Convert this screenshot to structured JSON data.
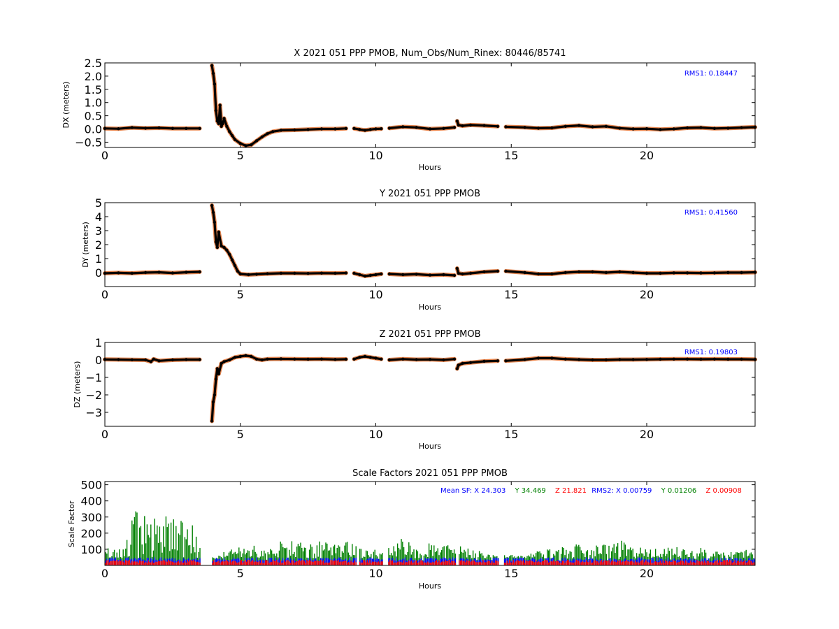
{
  "chart_data": [
    {
      "type": "scatter",
      "title": "X 2021 051 PPP  PMOB, Num_Obs/Num_Rinex: 80446/85741",
      "xlabel": "Hours",
      "ylabel": "DX (meters)",
      "xlim": [
        0,
        24
      ],
      "ylim": [
        -0.7,
        2.5
      ],
      "xticks": [
        0,
        5,
        10,
        15,
        20
      ],
      "yticks": [
        -0.5,
        0.0,
        0.5,
        1.0,
        1.5,
        2.0,
        2.5
      ],
      "ytick_labels": [
        "−0.5",
        "0.0",
        "0.5",
        "1.0",
        "1.5",
        "2.0",
        "2.5"
      ],
      "annotation": "RMS1:  0.18447",
      "annotation_color": "#0000ff",
      "point_color": "#000000",
      "error_color": "#e07030",
      "series": [
        {
          "x": [
            0,
            0.5,
            1.0,
            1.5,
            2.0,
            2.5,
            3.0,
            3.5
          ],
          "y": [
            0.02,
            0.01,
            0.05,
            0.03,
            0.04,
            0.02,
            0.02,
            0.02
          ]
        },
        {
          "x": [
            3.95,
            4.0,
            4.05,
            4.1,
            4.15,
            4.2,
            4.25,
            4.3,
            4.35,
            4.4,
            4.5,
            4.6,
            4.7,
            4.8,
            5.0,
            5.2,
            5.4,
            5.6,
            5.8,
            6.0,
            6.2,
            6.5,
            7.0,
            7.5,
            8.0,
            8.5,
            8.9
          ],
          "y": [
            2.4,
            2.1,
            1.7,
            0.7,
            0.3,
            0.2,
            0.9,
            0.1,
            0.2,
            0.4,
            0.1,
            -0.1,
            -0.25,
            -0.4,
            -0.55,
            -0.63,
            -0.6,
            -0.45,
            -0.3,
            -0.18,
            -0.1,
            -0.05,
            -0.04,
            -0.02,
            0.0,
            0.0,
            0.02
          ]
        },
        {
          "x": [
            9.2,
            9.4,
            9.6,
            9.8,
            10.0,
            10.2
          ],
          "y": [
            0.02,
            -0.02,
            -0.05,
            -0.02,
            0.0,
            0.01
          ]
        },
        {
          "x": [
            10.5,
            11.0,
            11.5,
            12.0,
            12.5,
            12.9
          ],
          "y": [
            0.03,
            0.08,
            0.06,
            0.0,
            0.02,
            0.06
          ]
        },
        {
          "x": [
            13.0,
            13.05,
            13.2,
            13.5,
            14.0,
            14.5
          ],
          "y": [
            0.3,
            0.15,
            0.12,
            0.15,
            0.13,
            0.1
          ]
        },
        {
          "x": [
            14.8,
            15.5,
            16.0,
            16.5,
            17.0,
            17.5,
            18.0,
            18.5,
            19.0,
            19.5,
            20.0,
            20.5,
            21.0,
            21.5,
            22.0,
            22.5,
            23.0,
            23.5,
            24.0
          ],
          "y": [
            0.08,
            0.06,
            0.03,
            0.04,
            0.1,
            0.13,
            0.08,
            0.1,
            0.03,
            0.0,
            0.01,
            -0.02,
            0.0,
            0.04,
            0.05,
            0.02,
            0.03,
            0.05,
            0.07
          ]
        }
      ]
    },
    {
      "type": "scatter",
      "title": "Y 2021 051 PPP  PMOB",
      "xlabel": "Hours",
      "ylabel": "DY (meters)",
      "xlim": [
        0,
        24
      ],
      "ylim": [
        -1.0,
        5.0
      ],
      "xticks": [
        0,
        5,
        10,
        15,
        20
      ],
      "yticks": [
        0,
        1,
        2,
        3,
        4,
        5
      ],
      "ytick_labels": [
        "0",
        "1",
        "2",
        "3",
        "4",
        "5"
      ],
      "annotation": "RMS1:  0.41560",
      "annotation_color": "#0000ff",
      "point_color": "#000000",
      "error_color": "#e07030",
      "series": [
        {
          "x": [
            0,
            0.5,
            1.0,
            1.5,
            2.0,
            2.5,
            3.0,
            3.5
          ],
          "y": [
            -0.05,
            -0.02,
            -0.05,
            0.0,
            0.02,
            -0.03,
            0.02,
            0.05
          ]
        },
        {
          "x": [
            3.95,
            4.0,
            4.05,
            4.1,
            4.15,
            4.2,
            4.3,
            4.4,
            4.5,
            4.6,
            4.7,
            4.8,
            4.9,
            5.0,
            5.3,
            5.6,
            6.0,
            6.5,
            7.0,
            7.5,
            8.0,
            8.5,
            8.9
          ],
          "y": [
            4.8,
            4.3,
            3.6,
            2.2,
            1.8,
            2.9,
            1.9,
            1.8,
            1.6,
            1.3,
            0.9,
            0.5,
            0.1,
            -0.1,
            -0.15,
            -0.12,
            -0.08,
            -0.05,
            -0.05,
            -0.06,
            -0.04,
            -0.05,
            -0.03
          ]
        },
        {
          "x": [
            9.2,
            9.4,
            9.6,
            9.8,
            10.0,
            10.2
          ],
          "y": [
            -0.05,
            -0.15,
            -0.25,
            -0.2,
            -0.15,
            -0.1
          ]
        },
        {
          "x": [
            10.5,
            11.0,
            11.5,
            12.0,
            12.5,
            12.9
          ],
          "y": [
            -0.1,
            -0.15,
            -0.12,
            -0.18,
            -0.15,
            -0.2
          ]
        },
        {
          "x": [
            13.0,
            13.05,
            13.2,
            13.5,
            14.0,
            14.5
          ],
          "y": [
            0.3,
            -0.05,
            -0.1,
            -0.05,
            0.05,
            0.1
          ]
        },
        {
          "x": [
            14.8,
            15.5,
            16.0,
            16.5,
            17.0,
            17.5,
            18.0,
            18.5,
            19.0,
            19.5,
            20.0,
            20.5,
            21.0,
            21.5,
            22.0,
            22.5,
            23.0,
            23.5,
            24.0
          ],
          "y": [
            0.1,
            0.0,
            -0.1,
            -0.1,
            0.0,
            0.05,
            0.05,
            0.0,
            0.05,
            0.0,
            -0.05,
            -0.05,
            -0.02,
            -0.02,
            -0.03,
            -0.02,
            0.0,
            0.0,
            0.02
          ]
        }
      ]
    },
    {
      "type": "scatter",
      "title": "Z 2021 051 PPP  PMOB",
      "xlabel": "Hours",
      "ylabel": "DZ (meters)",
      "xlim": [
        0,
        24
      ],
      "ylim": [
        -3.8,
        1.0
      ],
      "xticks": [
        0,
        5,
        10,
        15,
        20
      ],
      "yticks": [
        -3,
        -2,
        -1,
        0,
        1
      ],
      "ytick_labels": [
        "−3",
        "−2",
        "−1",
        "0",
        "1"
      ],
      "annotation": "RMS1:  0.19803",
      "annotation_color": "#0000ff",
      "point_color": "#000000",
      "error_color": "#e07030",
      "series": [
        {
          "x": [
            0,
            0.5,
            1.0,
            1.5,
            1.7,
            1.8,
            2.0,
            2.5,
            3.0,
            3.5
          ],
          "y": [
            0.03,
            0.02,
            0.01,
            0.0,
            -0.1,
            0.05,
            -0.05,
            0.0,
            0.02,
            0.02
          ]
        },
        {
          "x": [
            3.95,
            4.0,
            4.05,
            4.1,
            4.15,
            4.2,
            4.3,
            4.4,
            4.6,
            4.8,
            5.0,
            5.2,
            5.4,
            5.6,
            5.8,
            6.0,
            6.5,
            7.0,
            7.5,
            8.0,
            8.5,
            8.9
          ],
          "y": [
            -3.5,
            -2.4,
            -2.0,
            -1.1,
            -0.5,
            -0.8,
            -0.2,
            -0.1,
            0.0,
            0.15,
            0.2,
            0.25,
            0.2,
            0.05,
            0.0,
            0.05,
            0.06,
            0.05,
            0.04,
            0.05,
            0.03,
            0.04
          ]
        },
        {
          "x": [
            9.2,
            9.4,
            9.6,
            9.8,
            10.0,
            10.2
          ],
          "y": [
            0.05,
            0.15,
            0.2,
            0.15,
            0.1,
            0.05
          ]
        },
        {
          "x": [
            10.5,
            11.0,
            11.5,
            12.0,
            12.5,
            12.9
          ],
          "y": [
            0.0,
            0.05,
            0.02,
            0.03,
            0.0,
            0.05
          ]
        },
        {
          "x": [
            13.0,
            13.05,
            13.2,
            13.5,
            14.0,
            14.5
          ],
          "y": [
            -0.5,
            -0.3,
            -0.2,
            -0.15,
            -0.08,
            -0.05
          ]
        },
        {
          "x": [
            14.8,
            15.5,
            16.0,
            16.5,
            17.0,
            17.5,
            18.0,
            18.5,
            19.0,
            19.5,
            20.0,
            20.5,
            21.0,
            21.5,
            22.0,
            22.5,
            23.0,
            23.5,
            24.0
          ],
          "y": [
            -0.05,
            0.02,
            0.1,
            0.1,
            0.05,
            0.02,
            0.0,
            0.0,
            0.02,
            0.02,
            0.03,
            0.04,
            0.05,
            0.05,
            0.04,
            0.05,
            0.04,
            0.04,
            0.03
          ]
        }
      ]
    },
    {
      "type": "bar",
      "title": "Scale Factors 2021 051 PPP  PMOB",
      "xlabel": "Hours",
      "ylabel": "Scale Factor",
      "xlim": [
        0,
        24
      ],
      "ylim": [
        0,
        520
      ],
      "xticks": [
        0,
        5,
        10,
        15,
        20
      ],
      "yticks": [
        100,
        200,
        300,
        400,
        500
      ],
      "ytick_labels": [
        "100",
        "200",
        "300",
        "400",
        "500"
      ],
      "gaps": [
        [
          3.55,
          3.95
        ],
        [
          9.3,
          9.4
        ],
        [
          10.25,
          10.45
        ],
        [
          12.95,
          13.05
        ],
        [
          14.55,
          14.75
        ]
      ],
      "annotations": [
        {
          "text": "Mean SF: X  24.303",
          "color": "#0000ff"
        },
        {
          "text": "Y  34.469",
          "color": "#008000"
        },
        {
          "text": "Z  21.821",
          "color": "#ff0000"
        },
        {
          "text": "RMS2: X  0.00759",
          "color": "#0000ff"
        },
        {
          "text": "Y  0.01206",
          "color": "#008000"
        },
        {
          "text": "Z  0.00908",
          "color": "#ff0000"
        }
      ],
      "series": [
        {
          "name": "X",
          "color": "#0000ff",
          "mean": 24.303,
          "rms": 0.00759
        },
        {
          "name": "Y",
          "color": "#008000",
          "mean": 34.469,
          "rms": 0.01206
        },
        {
          "name": "Z",
          "color": "#ff0000",
          "mean": 21.821,
          "rms": 0.00908
        }
      ],
      "x": [
        0.0,
        0.5,
        1.0,
        1.5,
        2.0,
        2.5,
        3.0,
        3.5,
        4.0,
        4.5,
        5.0,
        5.5,
        6.0,
        6.5,
        7.0,
        7.5,
        8.0,
        8.5,
        9.0,
        9.5,
        10.0,
        10.5,
        11.0,
        11.5,
        12.0,
        12.5,
        13.0,
        13.5,
        14.0,
        14.5,
        15.0,
        15.5,
        16.0,
        16.5,
        17.0,
        17.5,
        18.0,
        18.5,
        19.0,
        19.5,
        20.0,
        20.5,
        21.0,
        21.5,
        22.0,
        22.5,
        23.0,
        23.5,
        24.0
      ],
      "y_envelope": [
        120,
        90,
        380,
        310,
        300,
        320,
        330,
        230,
        40,
        100,
        120,
        140,
        130,
        160,
        170,
        140,
        150,
        140,
        150,
        120,
        110,
        140,
        170,
        150,
        140,
        140,
        130,
        120,
        80,
        60,
        70,
        60,
        90,
        110,
        130,
        130,
        120,
        140,
        160,
        110,
        120,
        100,
        120,
        110,
        110,
        90,
        80,
        110,
        80
      ]
    }
  ]
}
